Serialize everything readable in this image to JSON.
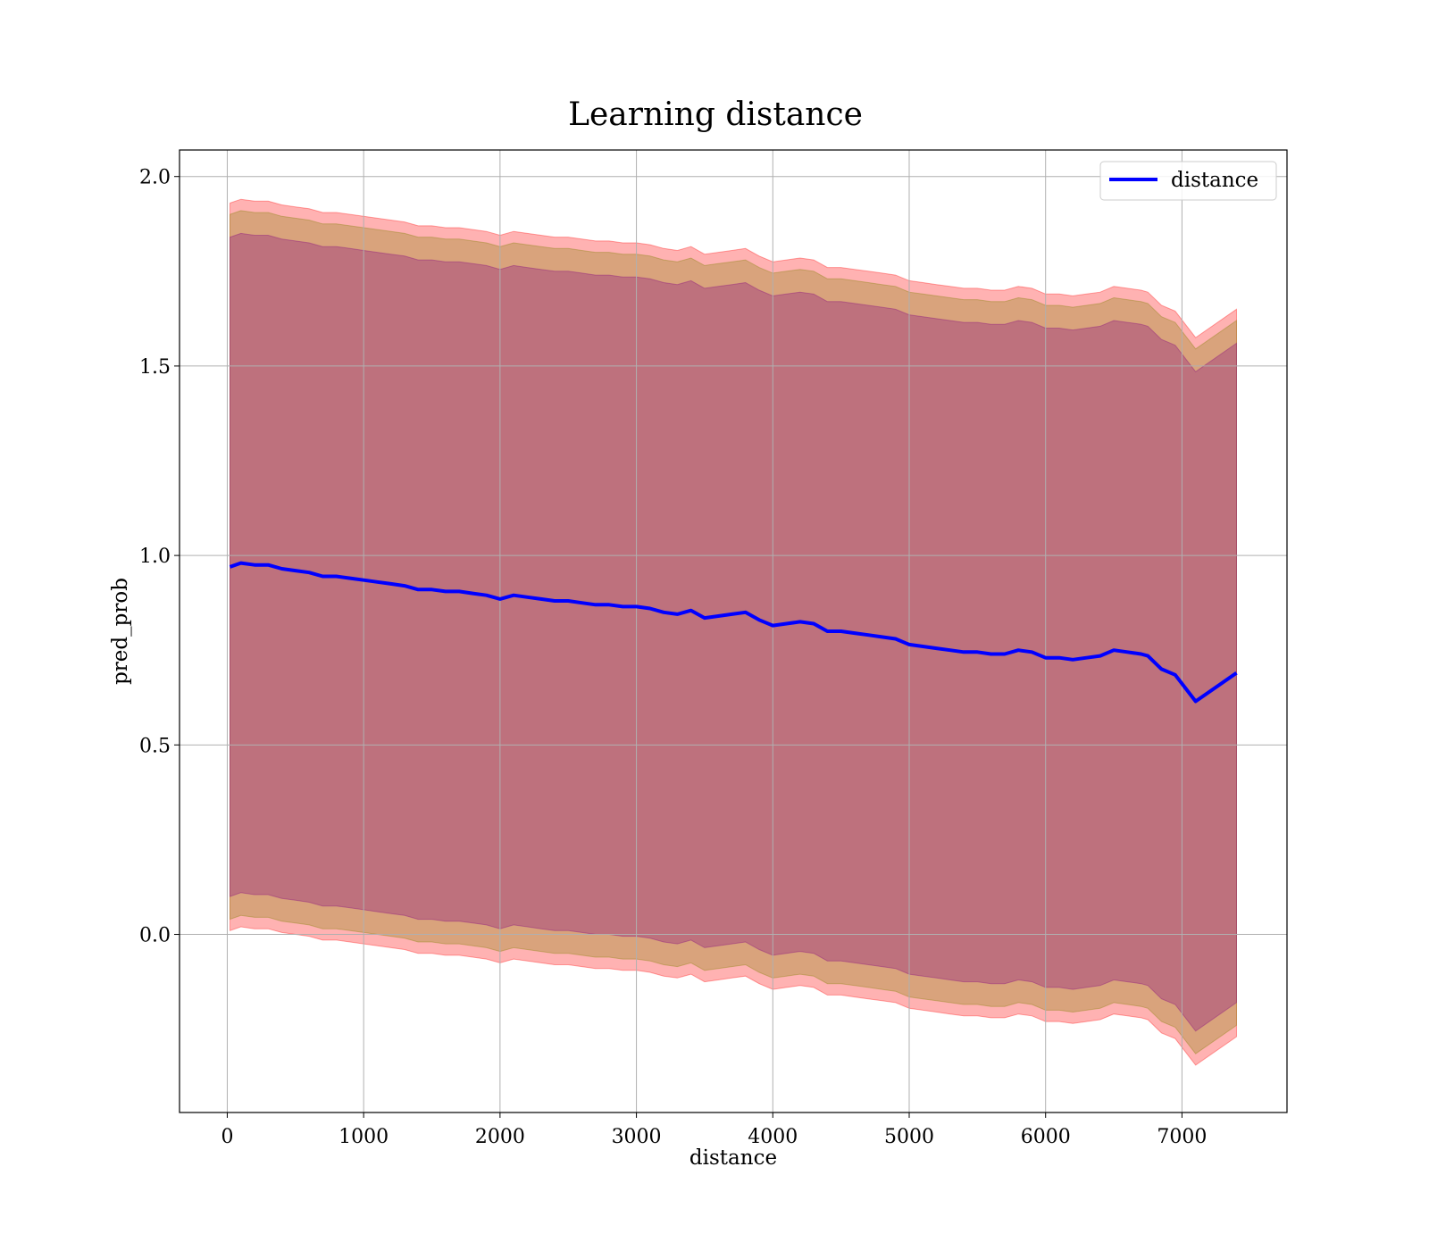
{
  "chart_data": {
    "type": "line",
    "title": "Learning distance",
    "xlabel": "distance",
    "ylabel": "pred_prob",
    "xlim": [
      -350,
      7770
    ],
    "ylim": [
      -0.47,
      2.07
    ],
    "xticks": [
      0,
      1000,
      2000,
      3000,
      4000,
      5000,
      6000,
      7000
    ],
    "xtick_labels": [
      "0",
      "1000",
      "2000",
      "3000",
      "4000",
      "5000",
      "6000",
      "7000"
    ],
    "yticks": [
      0.0,
      0.5,
      1.0,
      1.5,
      2.0
    ],
    "ytick_labels": [
      "0.0",
      "0.5",
      "1.0",
      "1.5",
      "2.0"
    ],
    "grid": true,
    "legend": {
      "position": "top-right",
      "entries": [
        "distance"
      ]
    },
    "colors": {
      "line": "#0000ff",
      "band_outer": "#ff0000",
      "band_middle": "#808000",
      "band_inner": "#800080",
      "grid": "#b0b0b0"
    },
    "series": [
      {
        "name": "distance",
        "x": [
          20,
          100,
          200,
          300,
          400,
          500,
          600,
          700,
          800,
          900,
          1000,
          1100,
          1200,
          1300,
          1400,
          1500,
          1600,
          1700,
          1800,
          1900,
          2000,
          2100,
          2200,
          2300,
          2400,
          2500,
          2600,
          2700,
          2800,
          2900,
          3000,
          3100,
          3200,
          3300,
          3400,
          3500,
          3600,
          3700,
          3800,
          3900,
          4000,
          4100,
          4200,
          4300,
          4400,
          4500,
          4600,
          4700,
          4800,
          4900,
          5000,
          5100,
          5200,
          5300,
          5400,
          5500,
          5600,
          5700,
          5800,
          5900,
          6000,
          6100,
          6200,
          6300,
          6400,
          6500,
          6600,
          6700,
          6750,
          6850,
          6950,
          7100,
          7400
        ],
        "y": [
          0.97,
          0.98,
          0.975,
          0.975,
          0.965,
          0.96,
          0.955,
          0.945,
          0.945,
          0.94,
          0.935,
          0.93,
          0.925,
          0.92,
          0.91,
          0.91,
          0.905,
          0.905,
          0.9,
          0.895,
          0.885,
          0.895,
          0.89,
          0.885,
          0.88,
          0.88,
          0.875,
          0.87,
          0.87,
          0.865,
          0.865,
          0.86,
          0.85,
          0.845,
          0.855,
          0.835,
          0.84,
          0.845,
          0.85,
          0.83,
          0.815,
          0.82,
          0.825,
          0.82,
          0.8,
          0.8,
          0.795,
          0.79,
          0.785,
          0.78,
          0.765,
          0.76,
          0.755,
          0.75,
          0.745,
          0.745,
          0.74,
          0.74,
          0.75,
          0.745,
          0.73,
          0.73,
          0.725,
          0.73,
          0.735,
          0.75,
          0.745,
          0.74,
          0.735,
          0.7,
          0.685,
          0.615,
          0.69
        ]
      }
    ],
    "bands": [
      {
        "name": "band_outer",
        "half_width": 0.96
      },
      {
        "name": "band_middle",
        "half_width": 0.93
      },
      {
        "name": "band_inner",
        "half_width": 0.87
      }
    ]
  }
}
